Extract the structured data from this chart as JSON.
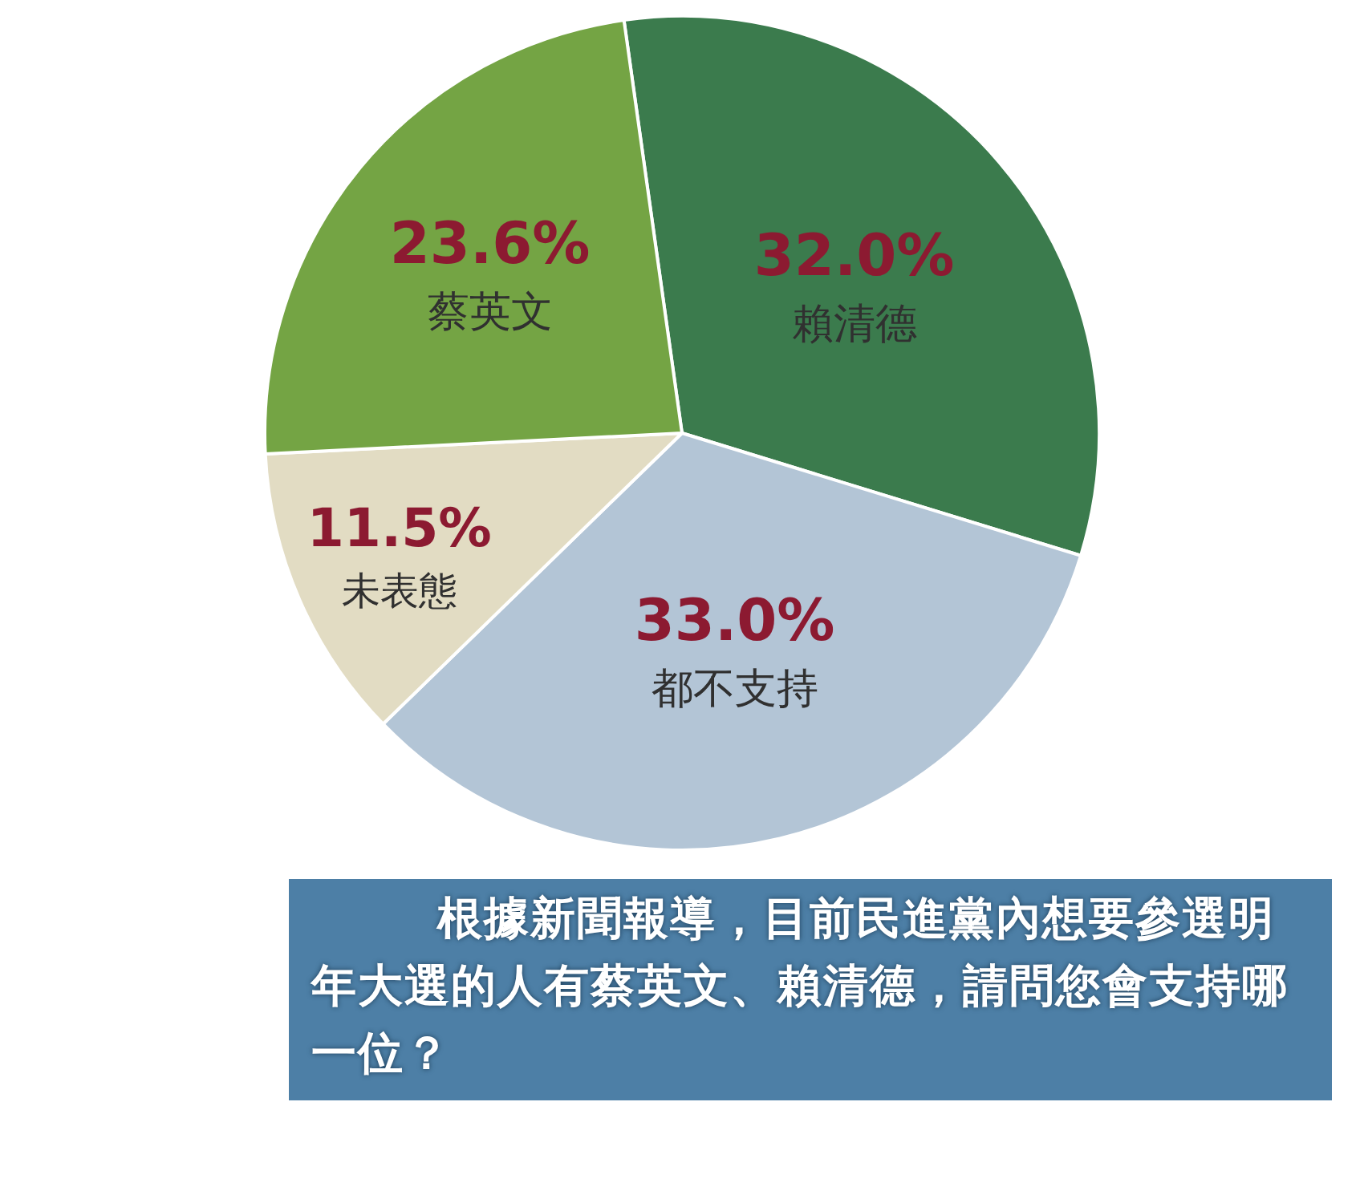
{
  "chart_data": {
    "type": "pie",
    "categories": [
      "賴清德",
      "都不支持",
      "未表態",
      "蔡英文"
    ],
    "values": [
      32.0,
      33.0,
      11.5,
      23.6
    ],
    "colors": [
      "#3b7b4d",
      "#b3c5d6",
      "#e2dcc3",
      "#74a444"
    ],
    "value_labels": [
      "32.0%",
      "33.0%",
      "11.5%",
      "23.6%"
    ],
    "annotations": [
      "根據新聞報導，目前民進黨內想要參選明年大選的人有蔡英文、賴清德，請問您會支持哪一位？"
    ]
  }
}
